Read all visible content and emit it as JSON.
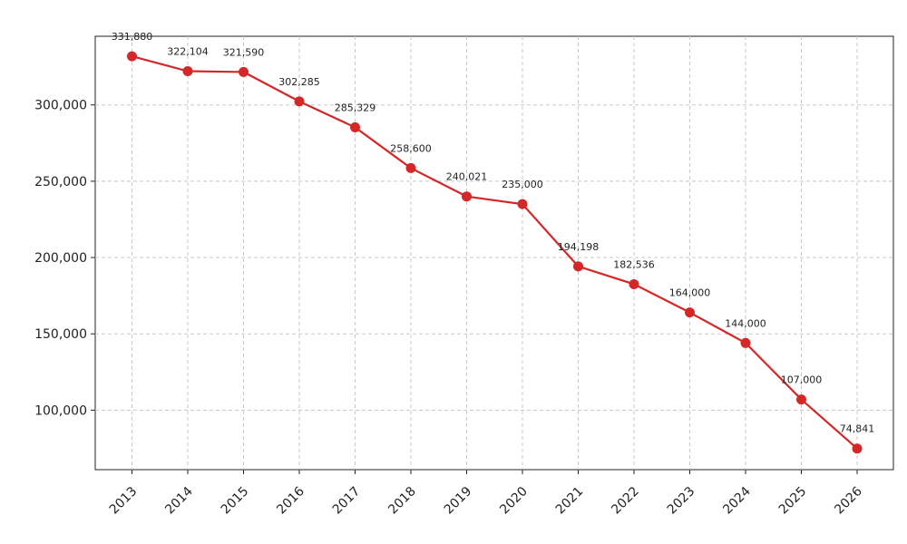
{
  "chart_data": {
    "type": "line",
    "title": "",
    "xlabel": "",
    "ylabel": "",
    "x": [
      "2013",
      "2014",
      "2015",
      "2016",
      "2017",
      "2018",
      "2019",
      "2020",
      "2021",
      "2022",
      "2023",
      "2024",
      "2025",
      "2026"
    ],
    "series": [
      {
        "name": "series",
        "color": "#d62728",
        "values": [
          331880,
          322104,
          321590,
          302285,
          285329,
          258600,
          240021,
          235000,
          194198,
          182536,
          164000,
          144000,
          107000,
          74841
        ],
        "labels": [
          "331,880",
          "322,104",
          "321,590",
          "302,285",
          "285,329",
          "258,600",
          "240,021",
          "235,000",
          "194,198",
          "182,536",
          "164,000",
          "144,000",
          "107,000",
          "74,841"
        ]
      }
    ],
    "yticks": [
      100000,
      150000,
      200000,
      250000,
      300000
    ],
    "ytick_labels": [
      "100,000",
      "150,000",
      "200,000",
      "250,000",
      "300,000"
    ],
    "ylim": [
      61000,
      345000
    ],
    "grid": true,
    "legend": "none"
  }
}
